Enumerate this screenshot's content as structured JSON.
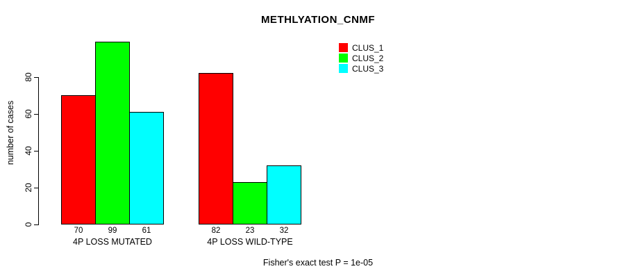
{
  "title": "METHLYATION_CNMF",
  "ylabel": "number of cases",
  "footer": "Fisher's exact test P = 1e-05",
  "chart_data": {
    "type": "bar",
    "title": "METHLYATION_CNMF",
    "xlabel": "",
    "ylabel": "number of cases",
    "categories": [
      "4P LOSS MUTATED",
      "4P LOSS WILD-TYPE"
    ],
    "series": [
      {
        "name": "CLUS_1",
        "color": "#ff0000",
        "values": [
          70,
          82
        ]
      },
      {
        "name": "CLUS_2",
        "color": "#00ff00",
        "values": [
          99,
          23
        ]
      },
      {
        "name": "CLUS_3",
        "color": "#00ffff",
        "values": [
          61,
          32
        ]
      }
    ],
    "bar_value_labels": [
      [
        70,
        99,
        61
      ],
      [
        82,
        23,
        32
      ]
    ],
    "yticks": [
      0,
      20,
      40,
      60,
      80
    ],
    "ylim": [
      0,
      99
    ],
    "grid": false,
    "legend_position": "top-right",
    "bar_border_color": "#000000",
    "annotation": "Fisher's exact test P = 1e-05"
  }
}
